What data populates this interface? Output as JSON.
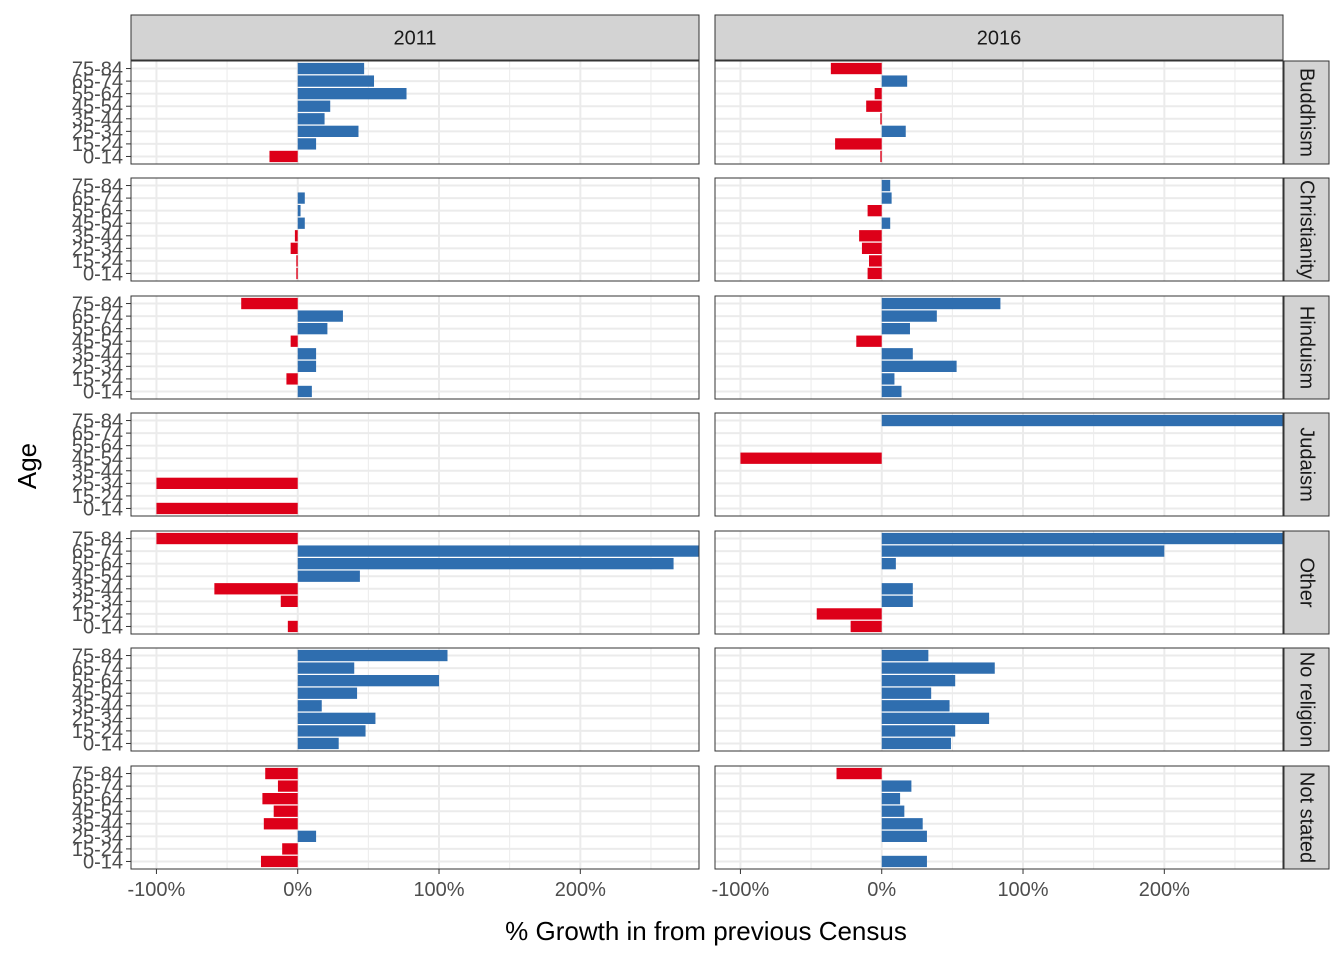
{
  "chart_data": {
    "type": "bar",
    "orientation": "horizontal",
    "facet_cols": [
      "2011",
      "2016"
    ],
    "facet_rows": [
      "Buddhism",
      "Christianity",
      "Hinduism",
      "Judaism",
      "Other",
      "No religion",
      "Not stated"
    ],
    "categories": [
      "0-14",
      "15-24",
      "25-34",
      "35-44",
      "45-54",
      "55-64",
      "65-74",
      "75-84"
    ],
    "xlabel": "% Growth in from previous Census",
    "ylabel": "Age",
    "x_ticks": [
      "-100%",
      "0%",
      "100%",
      "200%"
    ],
    "x_tick_values": [
      -100,
      0,
      100,
      200
    ],
    "xlim": [
      -118,
      284
    ],
    "grid": true,
    "colors": {
      "positive": "#2F6EAF",
      "negative": "#DD0019",
      "strip_bg": "#D3D3D3",
      "grid": "#EBEBEB",
      "border": "#333333"
    },
    "values": {
      "2011": {
        "Buddhism": [
          -20,
          13,
          43,
          19,
          23,
          77,
          54,
          47
        ],
        "Christianity": [
          -1,
          -1,
          -5,
          -2,
          5,
          2,
          5,
          0
        ],
        "Hinduism": [
          10,
          -8,
          13,
          13,
          -5,
          21,
          32,
          -40
        ],
        "Judaism": [
          -100,
          0,
          -100,
          0,
          0,
          0,
          0,
          0
        ],
        "Other": [
          -7,
          0,
          -12,
          -59,
          44,
          266,
          284,
          -100
        ],
        "No religion": [
          29,
          48,
          55,
          17,
          42,
          100,
          40,
          106
        ],
        "Not stated": [
          -26,
          -11,
          13,
          -24,
          -17,
          -25,
          -14,
          -23
        ]
      },
      "2016": {
        "Buddhism": [
          -1,
          -33,
          17,
          -1,
          -11,
          -5,
          18,
          -36
        ],
        "Christianity": [
          -10,
          -9,
          -14,
          -16,
          6,
          -10,
          7,
          6
        ],
        "Hinduism": [
          14,
          9,
          53,
          22,
          -18,
          20,
          39,
          84
        ],
        "Judaism": [
          0,
          0,
          0,
          0,
          -100,
          0,
          0,
          284
        ],
        "Other": [
          -22,
          -46,
          22,
          22,
          0,
          10,
          200,
          284
        ],
        "No religion": [
          49,
          52,
          76,
          48,
          35,
          52,
          80,
          33
        ],
        "Not stated": [
          32,
          0,
          32,
          29,
          16,
          13,
          21,
          -32
        ]
      }
    }
  }
}
